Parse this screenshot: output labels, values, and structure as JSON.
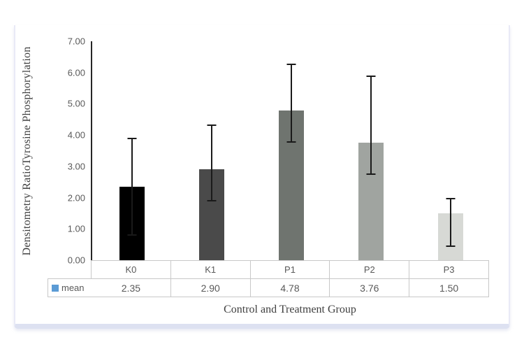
{
  "chart_data": {
    "type": "bar",
    "title": "",
    "categories": [
      "K0",
      "K1",
      "P1",
      "P2",
      "P3"
    ],
    "series": [
      {
        "name": "mean",
        "values": [
          2.35,
          2.9,
          4.78,
          3.76,
          1.5
        ]
      }
    ],
    "value_labels": [
      "2.35",
      "2.90",
      "4.78",
      "3.76",
      "1.50"
    ],
    "error_bars": [
      {
        "top": 3.9,
        "bottom": 0.8
      },
      {
        "top": 4.31,
        "bottom": 1.89
      },
      {
        "top": 6.27,
        "bottom": 3.77
      },
      {
        "top": 5.88,
        "bottom": 2.74
      },
      {
        "top": 1.96,
        "bottom": 0.45
      }
    ],
    "bar_colors": [
      "#000000",
      "#4a4a4a",
      "#6f746f",
      "#a0a4a0",
      "#d7d9d5"
    ],
    "error_bar_color": "#1a1a1a",
    "ylabel": "Densitometry RatioTyrosine Phosphorylation",
    "xlabel": "Control and Treatment Group",
    "ylim": [
      0,
      7
    ],
    "ytick_labels": [
      "0.00",
      "1.00",
      "2.00",
      "3.00",
      "4.00",
      "5.00",
      "6.00",
      "7.00"
    ],
    "grid": false,
    "legend": {
      "label": "mean",
      "key_color": "#5b9bd5",
      "position": "data-table-left"
    }
  }
}
